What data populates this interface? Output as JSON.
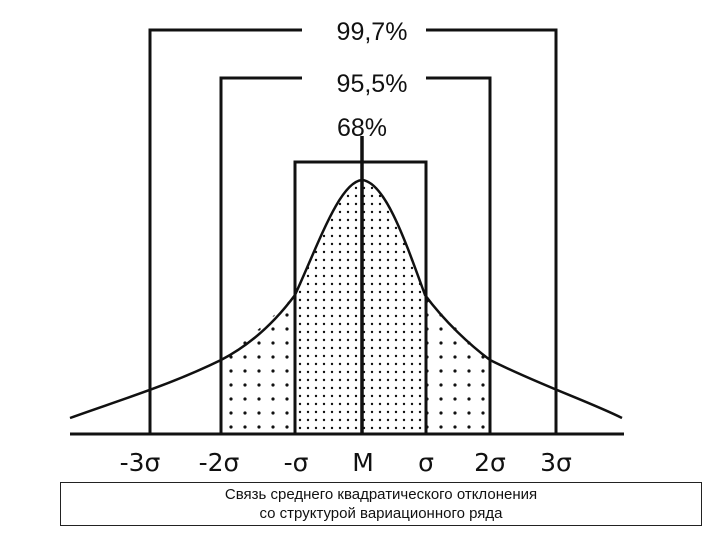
{
  "figure": {
    "bracket_labels": [
      "99,7%",
      "95,5%",
      "68%"
    ],
    "axis_labels": [
      "-3σ",
      "-2σ",
      "-σ",
      "M",
      "σ",
      "2σ",
      "3σ"
    ],
    "caption_lines": [
      "Связь среднего квадратического отклонения",
      "со структурой вариационного ряда"
    ]
  }
}
